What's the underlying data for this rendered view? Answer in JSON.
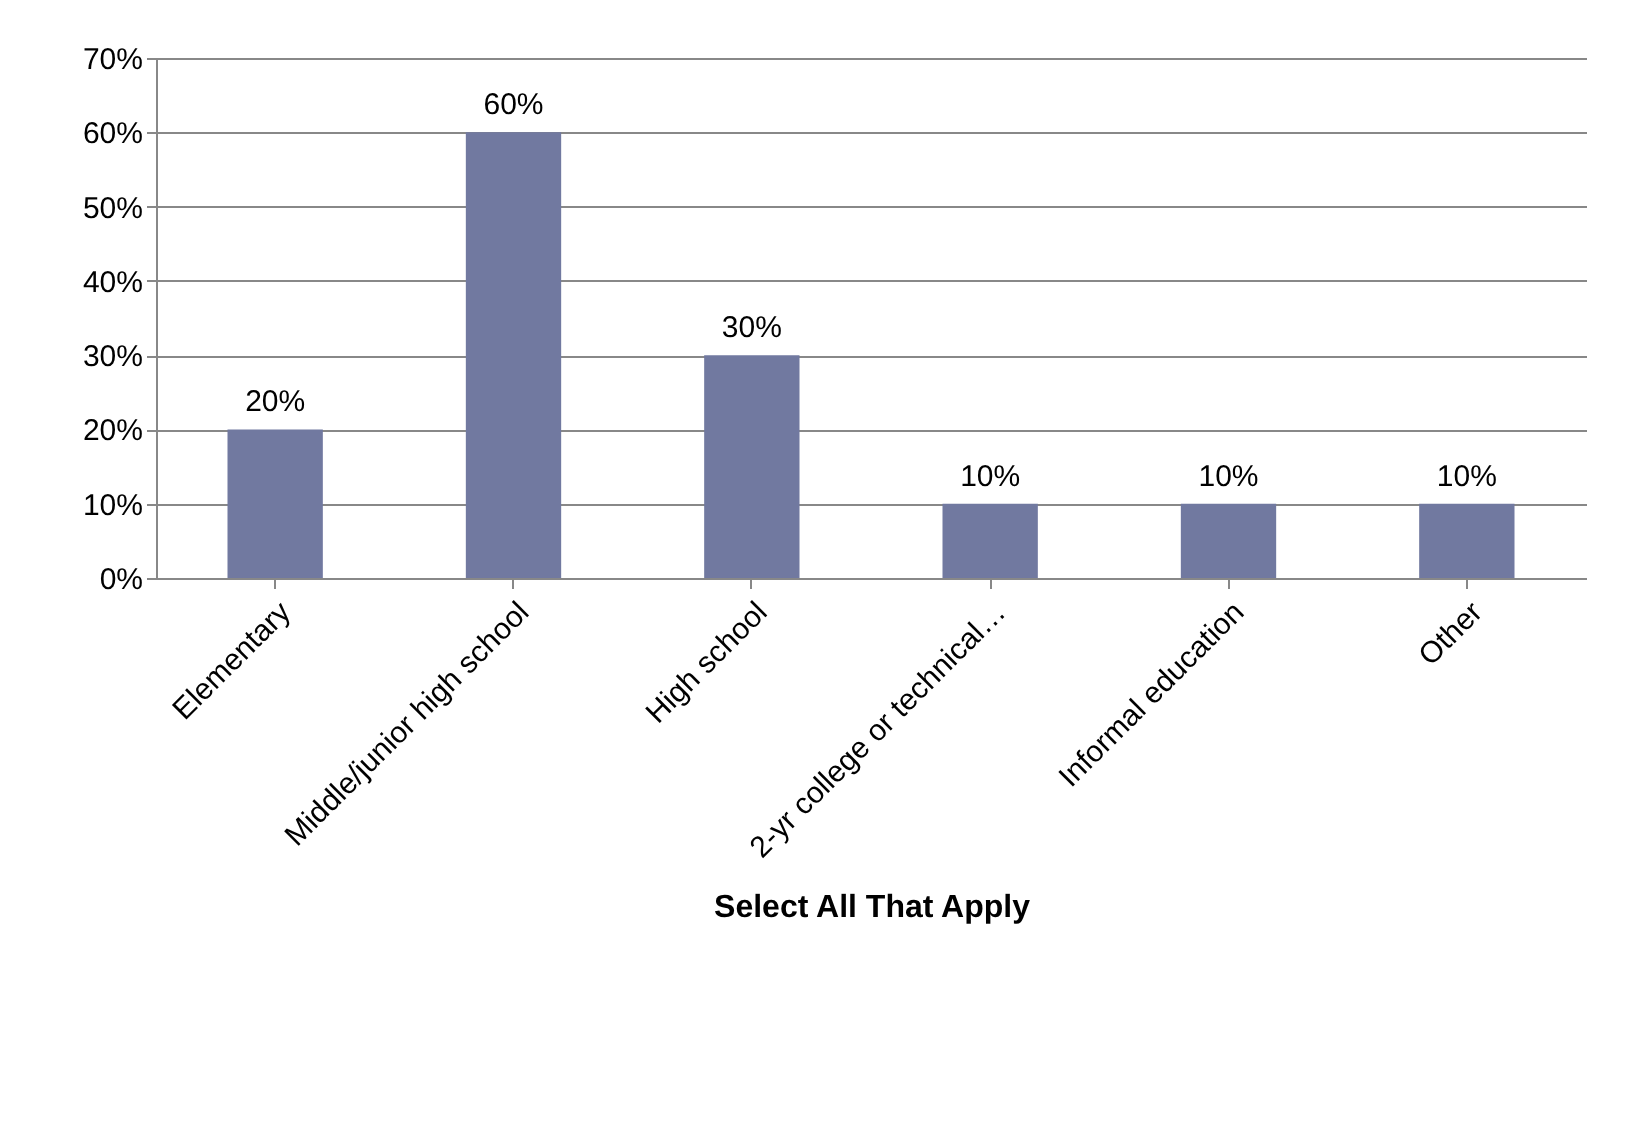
{
  "chart_data": {
    "type": "bar",
    "xlabel": "Select All That Apply",
    "categories": [
      "Elementary",
      "Middle/junior high school",
      "High school",
      "2-yr college or technical…",
      "Informal education",
      "Other"
    ],
    "values": [
      20,
      60,
      30,
      10,
      10,
      10
    ],
    "value_labels": [
      "20%",
      "60%",
      "30%",
      "10%",
      "10%",
      "10%"
    ],
    "color": "#7179a0",
    "ylim": [
      0,
      70
    ],
    "yticks": [
      {
        "value": 0,
        "label": "0%"
      },
      {
        "value": 10,
        "label": "10%"
      },
      {
        "value": 20,
        "label": "20%"
      },
      {
        "value": 30,
        "label": "30%"
      },
      {
        "value": 40,
        "label": "40%"
      },
      {
        "value": 50,
        "label": "50%"
      },
      {
        "value": 60,
        "label": "60%"
      },
      {
        "value": 70,
        "label": "70%"
      }
    ],
    "grid": "y"
  }
}
